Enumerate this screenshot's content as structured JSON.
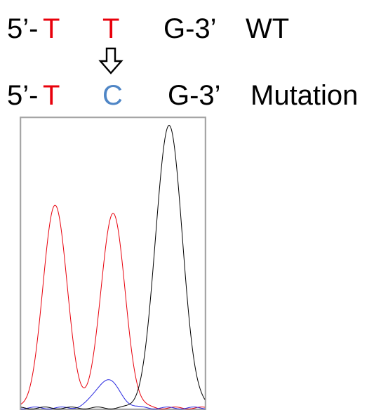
{
  "wt_row": {
    "prefix": "5’-",
    "base1": "T",
    "base2": "T",
    "suffix": "G-3’",
    "label": "WT"
  },
  "mutation_row": {
    "prefix": "5’-",
    "base1": "T",
    "base2": "C",
    "suffix": "G-3’",
    "label": "Mutation"
  },
  "arrow_icon": "hollow-down-arrow",
  "colors": {
    "T": "#e8000b",
    "C": "#4f86c6",
    "G": "#000000",
    "frame": "#a6a6a6"
  },
  "chart_data": {
    "type": "line",
    "title": "",
    "xlabel": "",
    "ylabel": "",
    "ylim": [
      0,
      100
    ],
    "grid": false,
    "legend": "none",
    "peaks": [
      {
        "base": "T",
        "height": 72,
        "center": 0.19
      },
      {
        "base": "T",
        "height": 69,
        "center": 0.5
      },
      {
        "base": "C",
        "height": 10,
        "center": 0.47
      },
      {
        "base": "G",
        "height": 100,
        "center": 0.8
      }
    ],
    "series": [
      {
        "base": "T",
        "color": "#e8000b"
      },
      {
        "base": "C",
        "color": "#2929e0"
      },
      {
        "base": "G",
        "color": "#000000"
      }
    ]
  }
}
